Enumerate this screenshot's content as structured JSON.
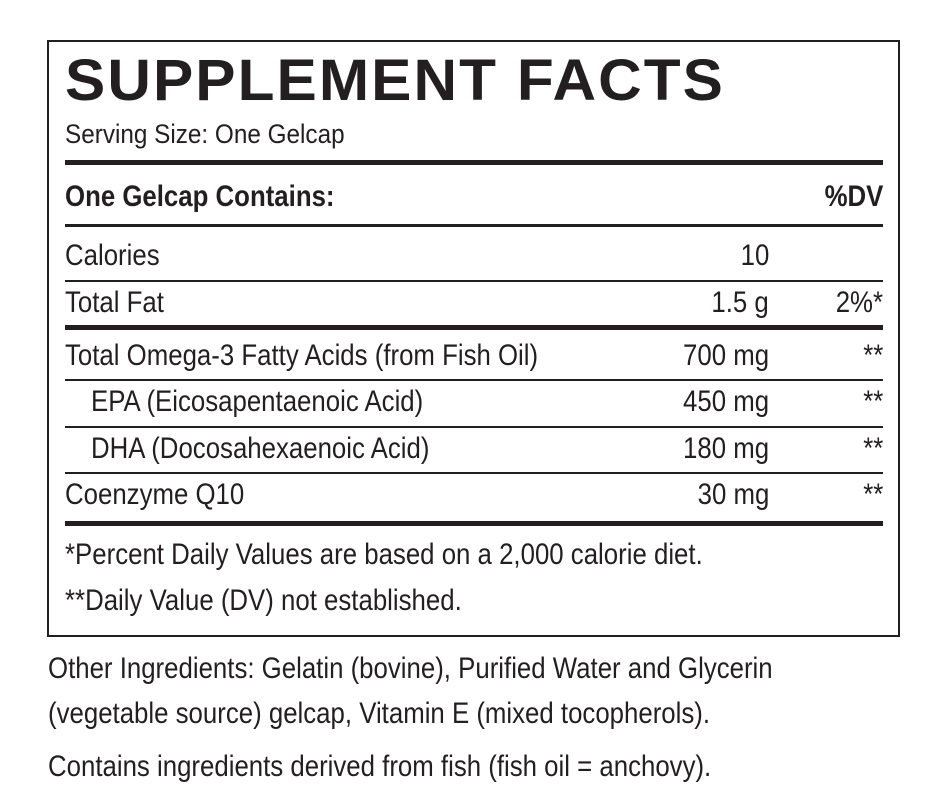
{
  "label": {
    "title": "SUPPLEMENT FACTS",
    "serving_size": "Serving Size: One Gelcap",
    "header": {
      "name": "One Gelcap Contains:",
      "dv": "%DV"
    },
    "rows": [
      {
        "name": "Calories",
        "amount": "10",
        "dv": ""
      },
      {
        "name": "Total Fat",
        "amount": "1.5 g",
        "dv": "2%*"
      },
      {
        "name": "Total Omega-3 Fatty Acids (from Fish Oil)",
        "amount": "700 mg",
        "dv": "**"
      },
      {
        "name": "EPA (Eicosapentaenoic Acid)",
        "amount": "450 mg",
        "dv": "**"
      },
      {
        "name": "DHA (Docosahexaenoic Acid)",
        "amount": "180 mg",
        "dv": "**"
      },
      {
        "name": "Coenzyme Q10",
        "amount": "30 mg",
        "dv": "**"
      }
    ],
    "footnotes": [
      "*Percent Daily Values are based on a 2,000 calorie diet.",
      "**Daily Value (DV) not established."
    ]
  },
  "other_ingredients": [
    "Other Ingredients: Gelatin (bovine), Purified Water and Glycerin",
    "(vegetable source) gelcap, Vitamin E (mixed tocopherols)."
  ],
  "allergen_note": "Contains ingredients derived from fish (fish oil = anchovy)."
}
